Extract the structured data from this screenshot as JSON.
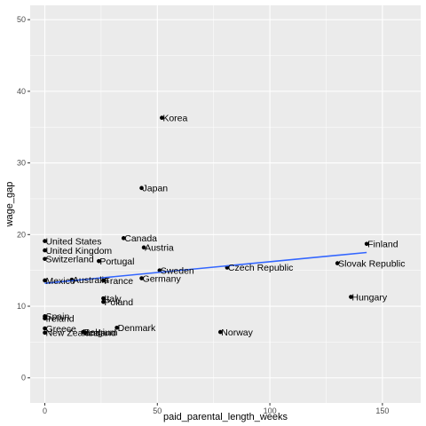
{
  "chart_data": {
    "type": "scatter",
    "xlabel": "paid_parental_length_weeks",
    "ylabel": "wage_gap",
    "xlim": [
      -6.5,
      167
    ],
    "ylim": [
      -3.5,
      52
    ],
    "x_ticks": [
      0,
      50,
      100,
      150
    ],
    "y_ticks": [
      0,
      10,
      20,
      30,
      40,
      50
    ],
    "grid": true,
    "legend": "none",
    "points": [
      {
        "label": "Korea",
        "x": 52,
        "y": 36.3
      },
      {
        "label": "Japan",
        "x": 43,
        "y": 26.5
      },
      {
        "label": "United States",
        "x": 0,
        "y": 19.1
      },
      {
        "label": "Canada",
        "x": 35,
        "y": 19.5
      },
      {
        "label": "Austria",
        "x": 44,
        "y": 18.2
      },
      {
        "label": "United Kingdom",
        "x": 0,
        "y": 17.8
      },
      {
        "label": "Finland",
        "x": 143,
        "y": 18.7
      },
      {
        "label": "Switzerland",
        "x": 0,
        "y": 16.6
      },
      {
        "label": "Portugal",
        "x": 24,
        "y": 16.3
      },
      {
        "label": "Slovak Republic",
        "x": 130,
        "y": 16.0
      },
      {
        "label": "Czech Republic",
        "x": 81,
        "y": 15.4
      },
      {
        "label": "Sweden",
        "x": 51,
        "y": 15.0
      },
      {
        "label": "Mexico",
        "x": 0,
        "y": 13.6
      },
      {
        "label": "Australia",
        "x": 12,
        "y": 13.7
      },
      {
        "label": "France",
        "x": 26,
        "y": 13.6
      },
      {
        "label": "Germany",
        "x": 43,
        "y": 13.9
      },
      {
        "label": "Hungary",
        "x": 136,
        "y": 11.3
      },
      {
        "label": "Italy",
        "x": 26,
        "y": 11.1
      },
      {
        "label": "Poland",
        "x": 26,
        "y": 10.6
      },
      {
        "label": "Spain",
        "x": 0,
        "y": 8.6
      },
      {
        "label": "Ireland",
        "x": 0,
        "y": 8.3
      },
      {
        "label": "Greece",
        "x": 0,
        "y": 6.9
      },
      {
        "label": "Denmark",
        "x": 32,
        "y": 7.0
      },
      {
        "label": "New Zealand",
        "x": 0,
        "y": 6.3
      },
      {
        "label": "Belgium",
        "x": 17,
        "y": 6.4
      },
      {
        "label": "Iceland",
        "x": 18,
        "y": 6.3
      },
      {
        "label": "Norway",
        "x": 78,
        "y": 6.4
      }
    ],
    "trend_line": {
      "x": [
        0,
        143
      ],
      "y": [
        13.2,
        17.5
      ],
      "color": "#3366FF"
    }
  },
  "colors": {
    "panel_background": "#EBEBEB",
    "grid_major": "#FFFFFF",
    "point": "#000000",
    "trend": "#3366FF"
  }
}
